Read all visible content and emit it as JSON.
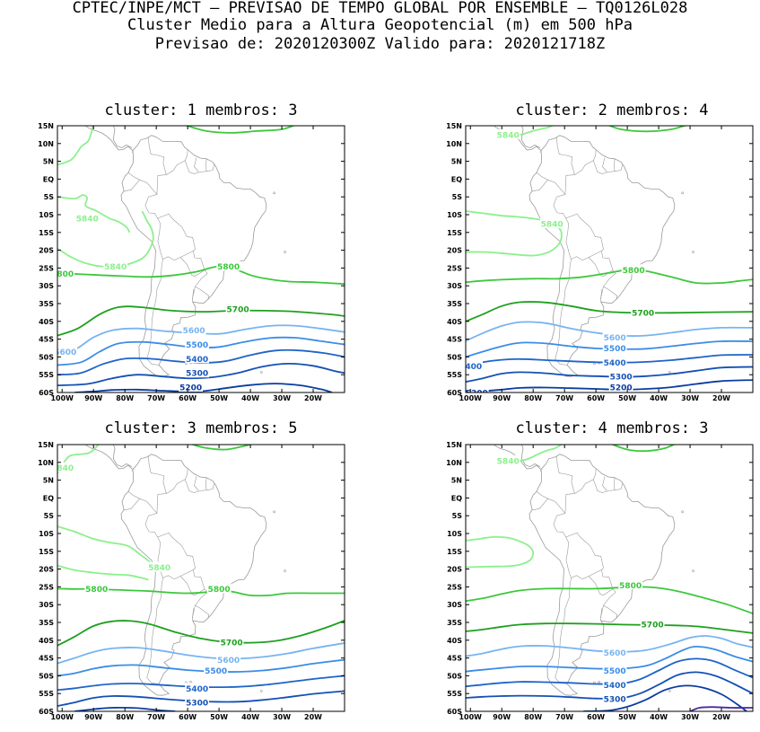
{
  "header": {
    "line1": "CPTEC/INPE/MCT – PREVISAO DE TEMPO GLOBAL POR ENSEMBLE – TQ0126L028",
    "line2": "Cluster Medio para a Altura Geopotencial (m) em 500 hPa",
    "line3": "Previsao de: 2020120300Z   Valido para: 2020121718Z"
  },
  "axes": {
    "lat_labels": [
      "15N",
      "10N",
      "5N",
      "EQ",
      "5S",
      "10S",
      "15S",
      "20S",
      "25S",
      "30S",
      "35S",
      "40S",
      "45S",
      "50S",
      "55S",
      "60S"
    ],
    "lon_labels": [
      "100W",
      "90W",
      "80W",
      "70W",
      "60W",
      "50W",
      "40W",
      "30W",
      "20W"
    ]
  },
  "contour_colors": {
    "5840": "#8cf08c",
    "5800": "#3cc83c",
    "5700": "#1ea01e",
    "5600": "#78b4f0",
    "5500": "#3c8ce6",
    "5400": "#1e64c8",
    "5300": "#1450b4",
    "5200": "#0a3ca0",
    "5100": "#5028a0",
    "land": "#9a9a9a"
  },
  "panels": [
    {
      "title": "cluster: 1   membros: 3",
      "labels": [
        {
          "text": "5840",
          "x": -92,
          "y": -11,
          "level": "5840"
        },
        {
          "text": "5840",
          "x": -83,
          "y": -24.5,
          "level": "5840"
        },
        {
          "text": "5800",
          "x": -47,
          "y": -24.5,
          "level": "5800"
        },
        {
          "text": "800",
          "x": -99,
          "y": -26.5,
          "level": "5800"
        },
        {
          "text": "5700",
          "x": -44,
          "y": -36.5,
          "level": "5700"
        },
        {
          "text": "5600",
          "x": -58,
          "y": -42.5,
          "level": "5600"
        },
        {
          "text": "5600",
          "x": -99,
          "y": -48.5,
          "level": "5600"
        },
        {
          "text": "5500",
          "x": -57,
          "y": -46.5,
          "level": "5500"
        },
        {
          "text": "5400",
          "x": -57,
          "y": -50.5,
          "level": "5400"
        },
        {
          "text": "5300",
          "x": -57,
          "y": -54.5,
          "level": "5300"
        },
        {
          "text": "5200",
          "x": -59,
          "y": -58.5,
          "level": "5200"
        }
      ]
    },
    {
      "title": "cluster: 2   membros: 4",
      "labels": [
        {
          "text": "5840",
          "x": -88,
          "y": 12.5,
          "level": "5840"
        },
        {
          "text": "5840",
          "x": -74,
          "y": -12.5,
          "level": "5840"
        },
        {
          "text": "5800",
          "x": -48,
          "y": -25.5,
          "level": "5800"
        },
        {
          "text": "5700",
          "x": -45,
          "y": -37.5,
          "level": "5700"
        },
        {
          "text": "5600",
          "x": -54,
          "y": -44.5,
          "level": "5600"
        },
        {
          "text": "5500",
          "x": -54,
          "y": -47.5,
          "level": "5500"
        },
        {
          "text": "5400",
          "x": -54,
          "y": -51.5,
          "level": "5400"
        },
        {
          "text": "400",
          "x": -99,
          "y": -52.5,
          "level": "5400"
        },
        {
          "text": "5300",
          "x": -52,
          "y": -55.5,
          "level": "5300"
        },
        {
          "text": "5200",
          "x": -52,
          "y": -58.5,
          "level": "5200"
        },
        {
          "text": "5200",
          "x": -98,
          "y": -60,
          "level": "5200"
        }
      ]
    },
    {
      "title": "cluster: 3   membros: 5",
      "labels": [
        {
          "text": "840",
          "x": -99,
          "y": 8.5,
          "level": "5840"
        },
        {
          "text": "5840",
          "x": -69,
          "y": -19.5,
          "level": "5840"
        },
        {
          "text": "5800",
          "x": -89,
          "y": -25.5,
          "level": "5800"
        },
        {
          "text": "5800",
          "x": -50,
          "y": -25.5,
          "level": "5800"
        },
        {
          "text": "5700",
          "x": -46,
          "y": -40.5,
          "level": "5700"
        },
        {
          "text": "5600",
          "x": -47,
          "y": -45.5,
          "level": "5600"
        },
        {
          "text": "5500",
          "x": -51,
          "y": -48.5,
          "level": "5500"
        },
        {
          "text": "5400",
          "x": -57,
          "y": -53.5,
          "level": "5400"
        },
        {
          "text": "5300",
          "x": -57,
          "y": -57.5,
          "level": "5300"
        }
      ]
    },
    {
      "title": "cluster: 4   membros: 3",
      "labels": [
        {
          "text": "5840",
          "x": -88,
          "y": 10.5,
          "level": "5840"
        },
        {
          "text": "5800",
          "x": -49,
          "y": -24.5,
          "level": "5800"
        },
        {
          "text": "5700",
          "x": -42,
          "y": -35.5,
          "level": "5700"
        },
        {
          "text": "5600",
          "x": -54,
          "y": -43.5,
          "level": "5600"
        },
        {
          "text": "5500",
          "x": -54,
          "y": -48.5,
          "level": "5500"
        },
        {
          "text": "5400",
          "x": -54,
          "y": -52.5,
          "level": "5400"
        },
        {
          "text": "5300",
          "x": -54,
          "y": -56.5,
          "level": "5300"
        }
      ]
    }
  ]
}
